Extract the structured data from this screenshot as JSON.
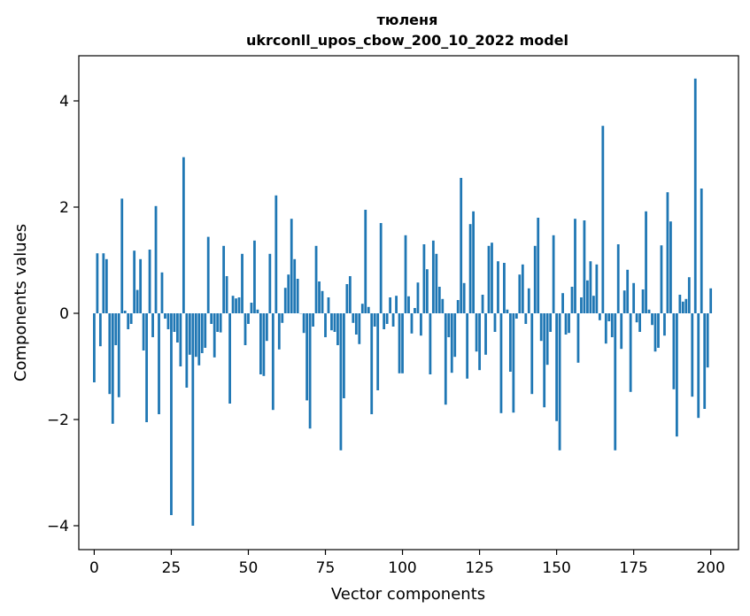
{
  "chart_data": {
    "type": "bar",
    "title": "тюленя",
    "subtitle": "ukrconll_upos_cbow_200_10_2022 model",
    "xlabel": "Vector components",
    "ylabel": "Components values",
    "xlim": [
      -5,
      209
    ],
    "ylim": [
      -4.45,
      4.85
    ],
    "xticks": [
      0,
      25,
      50,
      75,
      100,
      125,
      150,
      175,
      200
    ],
    "xtick_labels": [
      "0",
      "25",
      "50",
      "75",
      "100",
      "125",
      "150",
      "175",
      "200"
    ],
    "yticks": [
      -4,
      -2,
      0,
      2,
      4
    ],
    "ytick_labels": [
      "−4",
      "−2",
      "0",
      "2",
      "4"
    ],
    "bar_color": "#1f77b4",
    "grid": false,
    "values": [
      -1.3,
      1.13,
      -0.62,
      1.13,
      1.02,
      -1.52,
      -2.08,
      -0.6,
      -1.58,
      2.16,
      0.05,
      -0.3,
      -0.2,
      1.18,
      0.44,
      1.02,
      -0.7,
      -2.05,
      1.2,
      -0.45,
      2.02,
      -1.9,
      0.77,
      -0.1,
      -0.3,
      -3.8,
      -0.35,
      -0.55,
      -1.0,
      2.94,
      -1.4,
      -0.78,
      -4.0,
      -0.82,
      -0.98,
      -0.75,
      -0.65,
      1.44,
      -0.2,
      -0.83,
      -0.35,
      -0.36,
      1.27,
      0.7,
      -1.7,
      0.33,
      0.28,
      0.3,
      1.12,
      -0.6,
      -0.2,
      0.2,
      1.37,
      0.07,
      -1.15,
      -1.18,
      -0.52,
      1.12,
      -1.82,
      2.22,
      -0.68,
      -0.18,
      0.48,
      0.73,
      1.78,
      1.02,
      0.65,
      0.0,
      -0.37,
      -1.64,
      -2.17,
      -0.25,
      1.27,
      0.6,
      0.42,
      -0.45,
      0.3,
      -0.32,
      -0.35,
      -0.6,
      -2.58,
      -1.6,
      0.55,
      0.7,
      -0.18,
      -0.4,
      -0.58,
      0.18,
      1.95,
      0.12,
      -1.9,
      -0.25,
      -1.45,
      1.7,
      -0.3,
      -0.2,
      0.3,
      -0.25,
      0.33,
      -1.13,
      -1.13,
      1.47,
      0.32,
      -0.38,
      0.1,
      0.58,
      -0.42,
      1.3,
      0.83,
      -1.15,
      1.37,
      1.12,
      0.5,
      0.27,
      -1.72,
      -0.45,
      -1.12,
      -0.82,
      0.25,
      2.55,
      0.57,
      -1.23,
      1.68,
      1.92,
      -0.72,
      -1.07,
      0.35,
      -0.78,
      1.27,
      1.33,
      -0.35,
      0.98,
      -1.88,
      0.95,
      0.07,
      -1.1,
      -1.87,
      -0.1,
      0.73,
      0.92,
      -0.2,
      0.47,
      -1.52,
      1.27,
      1.8,
      -0.52,
      -1.77,
      -0.97,
      -0.35,
      1.47,
      -2.03,
      -2.58,
      0.38,
      -0.4,
      -0.37,
      0.5,
      1.78,
      -0.93,
      0.3,
      1.75,
      0.62,
      0.98,
      0.33,
      0.92,
      -0.13,
      3.53,
      -0.57,
      -0.15,
      -0.45,
      -2.58,
      1.3,
      -0.67,
      0.43,
      0.82,
      -1.48,
      0.57,
      -0.17,
      -0.35,
      0.45,
      1.92,
      0.07,
      -0.22,
      -0.72,
      -0.65,
      1.28,
      -0.42,
      2.28,
      1.73,
      -1.43,
      -2.32,
      0.35,
      0.22,
      0.27,
      0.68,
      -1.57,
      4.42,
      -1.97,
      2.35,
      -1.8,
      -1.02,
      0.47
    ]
  }
}
